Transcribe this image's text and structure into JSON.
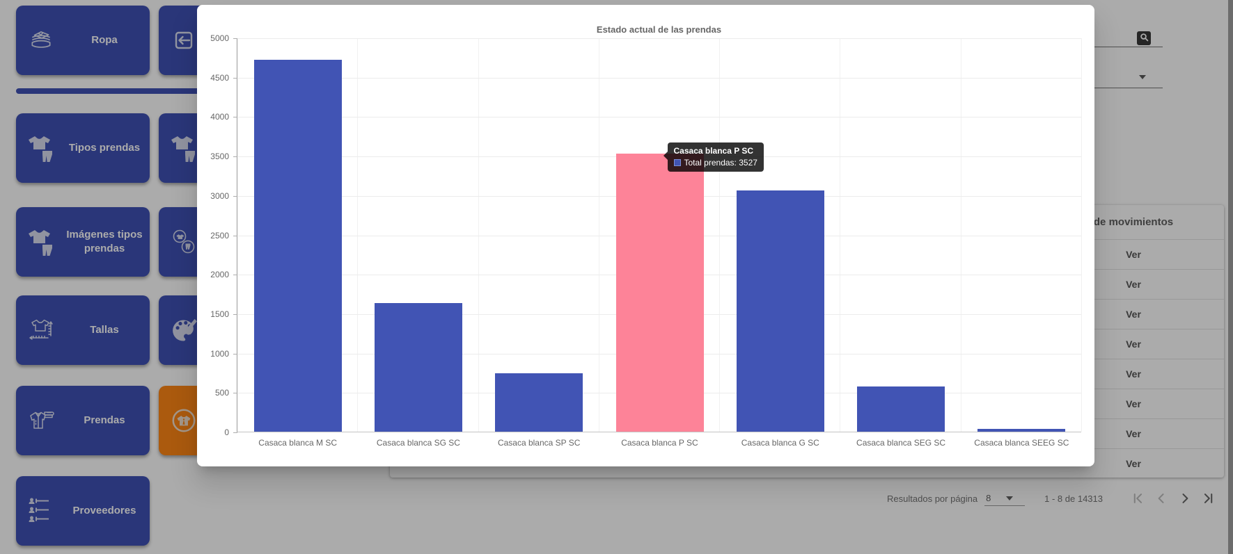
{
  "sidebar": {
    "primary_items": [
      {
        "label": "Ropa",
        "icon": "clothes-stack-icon"
      },
      {
        "label": "Tipos prendas",
        "icon": "shirt-pants-icon"
      },
      {
        "label": "Imágenes tipos prendas",
        "icon": "shirt-pants-icon"
      },
      {
        "label": "Tallas",
        "icon": "shirt-measure-icon"
      },
      {
        "label": "Prendas",
        "icon": "jacket-stack-icon"
      },
      {
        "label": "Proveedores",
        "icon": "suppliers-list-icon"
      }
    ],
    "secondary_items": [
      {
        "icon": "exit-icon"
      },
      {
        "icon": "shirt-pants-icon"
      },
      {
        "icon": "circled-garments-icon"
      },
      {
        "icon": "palette-icon"
      },
      {
        "icon": "circled-shirt-icon",
        "accent": "#ff8616"
      }
    ]
  },
  "filters": {
    "search_button_icon": "magnifier-icon",
    "dropdown_icon": "chevron-down-icon"
  },
  "table": {
    "header_visible": "de movimientos",
    "rows": [
      {
        "action": "Ver"
      },
      {
        "action": "Ver"
      },
      {
        "action": "Ver"
      },
      {
        "action": "Ver"
      },
      {
        "action": "Ver"
      },
      {
        "action": "Ver"
      },
      {
        "action": "Ver"
      },
      {
        "action": "Ver"
      }
    ]
  },
  "paginator": {
    "label": "Resultados por página",
    "page_size": "8",
    "range": "1 - 8 de 14313",
    "nav": {
      "first_enabled": false,
      "prev_enabled": false,
      "next_enabled": true,
      "last_enabled": true
    }
  },
  "modal": {
    "title": "Estado actual de las prendas"
  },
  "chart_data": {
    "type": "bar",
    "title": "Estado actual de las prendas",
    "categories": [
      "Casaca blanca M SC",
      "Casaca blanca SG SC",
      "Casaca blanca SP SC",
      "Casaca blanca P SC",
      "Casaca blanca G SC",
      "Casaca blanca SEG SC",
      "Casaca blanca SEEG SC"
    ],
    "series": [
      {
        "name": "Total prendas",
        "values": [
          4720,
          1630,
          740,
          3527,
          3060,
          570,
          35
        ]
      }
    ],
    "xlabel": "",
    "ylabel": "",
    "ylim": [
      0,
      5000
    ],
    "ytick_step": 500,
    "grid": true,
    "legend_position": "none",
    "bar_color": "#4154b4",
    "highlight_index": 3,
    "highlight_color": "#fd8398",
    "tooltip": {
      "title": "Casaca blanca P SC",
      "label": "Total prendas",
      "value": "3527"
    }
  },
  "colors": {
    "sidebar_tile": "#3f51b5",
    "accent_orange": "#ff8616",
    "bar_blue": "#4154b4",
    "bar_pink": "#fd8398",
    "backdrop": "rgba(0,0,0,0.33)"
  }
}
